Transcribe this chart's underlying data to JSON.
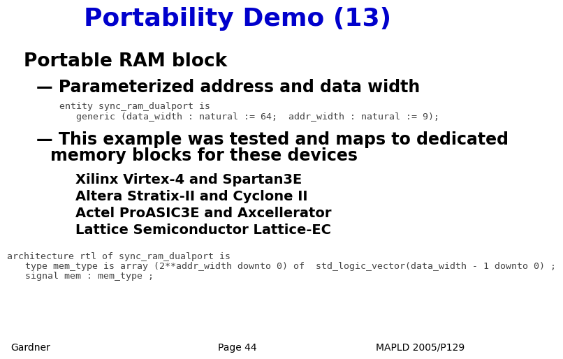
{
  "title": "Portability Demo (13)",
  "title_color": "#0000CC",
  "title_fontsize": 26,
  "bg_color": "#FFFFFF",
  "bullet1": "Portable RAM block",
  "bullet1_fontsize": 19,
  "sub1": "Parameterized address and data width",
  "sub1_fontsize": 17,
  "code1_line1": "entity sync_ram_dualport is",
  "code1_line2": "  generic (data_width : natural := 64;  addr_width : natural := 9);",
  "code_color": "#444444",
  "code_fontsize": 9.5,
  "sub2_line1": "This example was tested and maps to dedicated",
  "sub2_line2": "memory blocks for these devices",
  "sub2_fontsize": 17,
  "items": [
    "Xilinx Virtex-4 and Spartan3E",
    "Altera Stratix-II and Cyclone II",
    "Actel ProASIC3E and Axcellerator",
    "Lattice Semiconductor Lattice-EC"
  ],
  "items_fontsize": 14,
  "code2_line1": "architecture rtl of sync_ram_dualport is",
  "code2_line2": "  type mem_type is array (2**addr_width downto 0) of  std_logic_vector(data_width - 1 downto 0) ;",
  "code2_line3": "  signal mem : mem_type ;",
  "footer_left": "Gardner",
  "footer_center": "Page 44",
  "footer_right": "MAPLD 2005/P129",
  "footer_fontsize": 10,
  "text_color": "#000000",
  "bullet_color": "#0000CC"
}
